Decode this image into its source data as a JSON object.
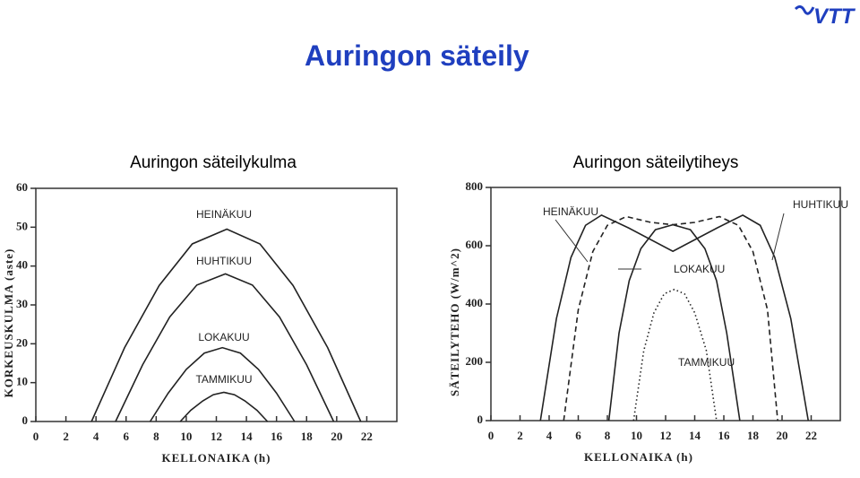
{
  "title": "Auringon säteily",
  "logo": "VTT",
  "chart_data": [
    {
      "type": "line",
      "subtitle": "Auringon säteilykulma",
      "xlabel": "KELLONAIKA (h)",
      "ylabel": "KORKEUSKULMA (aste)",
      "xlim": [
        0,
        24
      ],
      "ylim": [
        0,
        60
      ],
      "xticks": [
        0,
        2,
        4,
        6,
        8,
        10,
        12,
        14,
        16,
        18,
        20,
        22
      ],
      "yticks": [
        0,
        10,
        20,
        30,
        40,
        50,
        60
      ],
      "series": [
        {
          "name": "HEINÄKUU",
          "color": "#222222",
          "line_style": "solid",
          "x": [
            3.7,
            5.9,
            8.2,
            10.4,
            12.7,
            14.9,
            17.1,
            19.4,
            21.6
          ],
          "values": [
            0,
            19,
            35,
            45.7,
            49.5,
            45.7,
            35,
            19,
            0
          ]
        },
        {
          "name": "HUHTIKUU",
          "color": "#222222",
          "line_style": "solid",
          "x": [
            5.3,
            7.1,
            8.9,
            10.7,
            12.6,
            14.4,
            16.2,
            18.0,
            19.8
          ],
          "values": [
            0,
            14.6,
            26.9,
            35.1,
            38,
            35.1,
            26.9,
            14.6,
            0
          ]
        },
        {
          "name": "LOKAKUU",
          "color": "#222222",
          "line_style": "solid",
          "x": [
            7.6,
            8.8,
            10.0,
            11.2,
            12.4,
            13.6,
            14.8,
            16.0,
            17.2
          ],
          "values": [
            0,
            7.3,
            13.4,
            17.6,
            19,
            17.6,
            13.4,
            7.3,
            0
          ]
        },
        {
          "name": "TAMMIKUU",
          "color": "#222222",
          "line_style": "solid",
          "x": [
            9.6,
            10.3,
            11.1,
            11.8,
            12.5,
            13.2,
            13.9,
            14.7,
            15.4
          ],
          "values": [
            0,
            2.9,
            5.3,
            6.9,
            7.5,
            6.9,
            5.3,
            2.9,
            0
          ]
        }
      ]
    },
    {
      "type": "line",
      "subtitle": "Auringon säteilytiheys",
      "xlabel": "KELLONAIKA (h)",
      "ylabel": "SÄTEILYTEHO (W/m^2)",
      "xlim": [
        0,
        24
      ],
      "ylim": [
        0,
        800
      ],
      "xticks": [
        0,
        2,
        4,
        6,
        8,
        10,
        12,
        14,
        16,
        18,
        20,
        22
      ],
      "yticks": [
        0,
        200,
        400,
        600,
        800
      ],
      "series": [
        {
          "name": "HEINÄKUU",
          "color": "#222222",
          "line_style": "solid",
          "x": [
            3.4,
            4.5,
            5.5,
            6.5,
            7.6,
            9.5,
            12.5,
            15.5,
            17.3,
            18.5,
            19.5,
            20.6,
            21.8
          ],
          "values": [
            0,
            350,
            560,
            670,
            705,
            660,
            581,
            660,
            705,
            670,
            560,
            350,
            0
          ]
        },
        {
          "name": "HUHTIKUU",
          "color": "#222222",
          "line_style": "dashed",
          "x": [
            5.0,
            6.0,
            7.0,
            8.0,
            9.3,
            11,
            12.5,
            14,
            15.7,
            17,
            18,
            19,
            19.7
          ],
          "values": [
            0,
            380,
            580,
            670,
            700,
            680,
            672,
            680,
            700,
            670,
            580,
            380,
            0
          ]
        },
        {
          "name": "LOKAKUU",
          "color": "#222222",
          "line_style": "solid",
          "x": [
            8.1,
            8.8,
            9.5,
            10.3,
            11.3,
            12.5,
            13.7,
            14.7,
            15.5,
            16.2,
            17.1
          ],
          "values": [
            0,
            300,
            480,
            590,
            655,
            672,
            655,
            590,
            480,
            300,
            0
          ]
        },
        {
          "name": "TAMMIKUU",
          "color": "#222222",
          "line_style": "dotted",
          "x": [
            9.8,
            10.5,
            11.2,
            11.9,
            12.6,
            13.3,
            14.0,
            14.8,
            15.5
          ],
          "values": [
            0,
            240,
            370,
            435,
            450,
            435,
            370,
            240,
            0
          ]
        }
      ]
    }
  ]
}
